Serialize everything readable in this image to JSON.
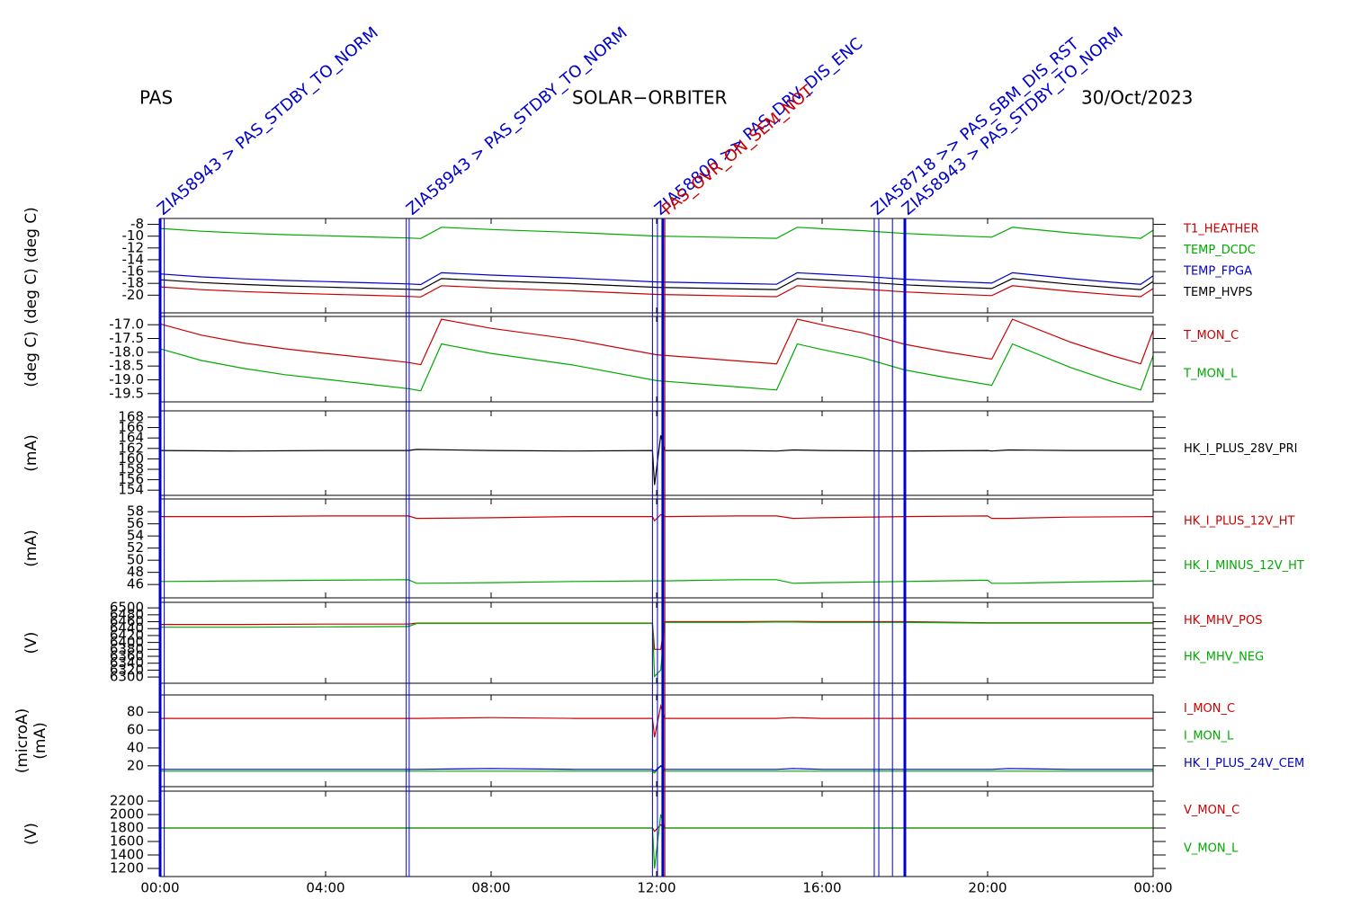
{
  "header": {
    "left": "PAS",
    "center": "SOLAR−ORBITER",
    "right": "30/Oct/2023"
  },
  "x_axis": {
    "xlim": [
      0,
      24
    ],
    "xticks": [
      {
        "value": 0,
        "label": "00:00"
      },
      {
        "value": 4,
        "label": "04:00"
      },
      {
        "value": 8,
        "label": "08:00"
      },
      {
        "value": 12,
        "label": "12:00"
      },
      {
        "value": 16,
        "label": "16:00"
      },
      {
        "value": 20,
        "label": "20:00"
      },
      {
        "value": 24,
        "label": "00:00"
      }
    ]
  },
  "events": [
    {
      "x": 0,
      "bold": true,
      "color": "#0000cc",
      "label": "ZIA58943 > PAS_STDBY_TO_NORM"
    },
    {
      "x": 0.1,
      "bold": false,
      "color": "#0000cc"
    },
    {
      "x": 5.95,
      "bold": false,
      "color": "#0000cc"
    },
    {
      "x": 6.02,
      "bold": false,
      "color": "#0000cc",
      "label": "ZIA58943 > PAS_STDBY_TO_NORM"
    },
    {
      "x": 11.9,
      "bold": false,
      "color": "#0000cc"
    },
    {
      "x": 12.02,
      "bold": false,
      "color": "#0000cc",
      "label": "ZIA58800 >> PAS_DRV_DIS_ENC"
    },
    {
      "x": 12.15,
      "bold": true,
      "color": "#0000cc"
    },
    {
      "x": 12.2,
      "bold": false,
      "color": "#cc0000",
      "label": "PAS_OVR_ON_SEM_NOT"
    },
    {
      "x": 17.26,
      "bold": false,
      "color": "#0000cc",
      "label": "ZIA58718 >> PAS_SBM_DIS_RST"
    },
    {
      "x": 17.37,
      "bold": false,
      "color": "#0000cc"
    },
    {
      "x": 17.7,
      "bold": false,
      "color": "#0000cc"
    },
    {
      "x": 18.0,
      "bold": true,
      "color": "#0000cc",
      "label": "ZIA58943 > PAS_STDBY_TO_NORM"
    }
  ],
  "chart_data": [
    {
      "type": "line",
      "ylabel": "(deg C)  (deg C)",
      "ylim": [
        -23,
        -7
      ],
      "yticks": [
        -8,
        -10,
        -12,
        -14,
        -16,
        -18,
        -20
      ],
      "x": [
        0,
        1,
        2,
        3,
        4,
        5,
        6,
        6.3,
        6.8,
        8,
        10,
        12,
        14,
        14.9,
        15.4,
        16,
        17,
        18,
        19,
        20.1,
        20.6,
        22,
        23,
        23.7,
        24
      ],
      "series": [
        {
          "name": "T1_HEATHER",
          "color": "#cc0000",
          "values": [
            -18.59,
            -19.07,
            -19.39,
            -19.64,
            -19.83,
            -20.02,
            -20.21,
            -20.3,
            -18.4,
            -18.78,
            -19.26,
            -19.88,
            -20.15,
            -20.26,
            -18.4,
            -18.63,
            -18.97,
            -19.45,
            -19.77,
            -20.07,
            -18.4,
            -19.35,
            -19.92,
            -20.26,
            -18.88
          ]
        },
        {
          "name": "TEMP_DCDC",
          "color": "#00aa00",
          "values": [
            -8.69,
            -9.17,
            -9.49,
            -9.74,
            -9.93,
            -10.12,
            -10.31,
            -10.4,
            -8.5,
            -8.88,
            -9.36,
            -9.98,
            -10.25,
            -10.36,
            -8.5,
            -8.73,
            -9.07,
            -9.55,
            -9.87,
            -10.17,
            -8.5,
            -9.45,
            -10.02,
            -10.36,
            -8.98
          ]
        },
        {
          "name": "TEMP_FPGA",
          "color": "#0000cc",
          "values": [
            -16.4,
            -16.9,
            -17.24,
            -17.5,
            -17.7,
            -17.9,
            -18.1,
            -18.2,
            -16.2,
            -16.6,
            -17.1,
            -17.76,
            -18.04,
            -18.16,
            -16.2,
            -16.44,
            -16.8,
            -17.3,
            -17.64,
            -17.96,
            -16.2,
            -17.2,
            -17.8,
            -18.16,
            -16.7
          ]
        },
        {
          "name": "TEMP_HVPS",
          "color": "#000000",
          "values": [
            -17.39,
            -17.87,
            -18.19,
            -18.44,
            -18.63,
            -18.82,
            -19.01,
            -19.1,
            -17.2,
            -17.58,
            -18.06,
            -18.68,
            -18.95,
            -19.06,
            -17.2,
            -17.43,
            -17.77,
            -18.25,
            -18.57,
            -18.87,
            -17.2,
            -18.15,
            -18.72,
            -19.06,
            -17.68
          ]
        }
      ]
    },
    {
      "type": "line",
      "ylabel": "(deg C)",
      "ylim": [
        -19.8,
        -16.7
      ],
      "yticks": [
        {
          "value": -17,
          "label": "-17.0"
        },
        -17.5,
        {
          "value": -18,
          "label": "-18.0"
        },
        -18.5,
        {
          "value": -19,
          "label": "-19.0"
        },
        -19.5
      ],
      "x": [
        0,
        1,
        2,
        3,
        4,
        5,
        6,
        6.3,
        6.8,
        8,
        10,
        12,
        14,
        14.9,
        15.4,
        16,
        17,
        18,
        19,
        20.1,
        20.6,
        22,
        23,
        23.7,
        24
      ],
      "series": [
        {
          "name": "T_MON_C",
          "color": "#cc0000",
          "values": [
            -16.97,
            -17.38,
            -17.66,
            -17.87,
            -18.04,
            -18.2,
            -18.37,
            -18.45,
            -16.8,
            -17.13,
            -17.54,
            -18.09,
            -18.32,
            -18.42,
            -16.8,
            -17.0,
            -17.3,
            -17.71,
            -17.99,
            -18.25,
            -16.8,
            -17.63,
            -18.12,
            -18.42,
            -17.21
          ]
        },
        {
          "name": "T_MON_L",
          "color": "#00aa00",
          "values": [
            -17.87,
            -18.3,
            -18.58,
            -18.81,
            -18.98,
            -19.15,
            -19.32,
            -19.4,
            -17.7,
            -18.04,
            -18.47,
            -19.03,
            -19.26,
            -19.37,
            -17.7,
            -17.9,
            -18.21,
            -18.64,
            -18.92,
            -19.2,
            -17.7,
            -18.55,
            -19.06,
            -19.37,
            -18.13
          ]
        }
      ]
    },
    {
      "type": "line",
      "ylabel": "(mA)",
      "ylim": [
        153,
        169.2
      ],
      "yticks": [
        168,
        166,
        164,
        162,
        160,
        158,
        156,
        154
      ],
      "x": [
        0,
        2,
        4,
        6,
        6.2,
        8,
        10,
        11.9,
        11.95,
        12.1,
        12.2,
        14,
        14.9,
        15.3,
        16,
        18,
        20,
        20.1,
        20.5,
        22,
        24
      ],
      "series": [
        {
          "name": "HK_I_PLUS_28V_PRI",
          "color": "#000000",
          "values": [
            161.6,
            161.5,
            161.6,
            161.6,
            161.8,
            161.6,
            161.5,
            161.6,
            155,
            164.5,
            161.6,
            161.6,
            161.5,
            161.7,
            161.6,
            161.5,
            161.6,
            161.5,
            161.7,
            161.6,
            161.6
          ]
        }
      ]
    },
    {
      "type": "line",
      "ylabel": "(mA)",
      "ylim": [
        43.8,
        60.1
      ],
      "yticks": [
        58,
        56,
        54,
        52,
        50,
        48,
        46
      ],
      "x": [
        0,
        2,
        4,
        6,
        6.2,
        8,
        10,
        11.9,
        11.95,
        12.1,
        12.2,
        14,
        14.9,
        15.3,
        16,
        18,
        20,
        20.1,
        20.5,
        22,
        24
      ],
      "series": [
        {
          "name": "HK_I_PLUS_12V_HT",
          "color": "#cc0000",
          "values": [
            57.2,
            57.2,
            57.3,
            57.3,
            56.9,
            57.0,
            57.2,
            57.2,
            56.5,
            57.5,
            57.2,
            57.3,
            57.3,
            56.9,
            57.0,
            57.2,
            57.3,
            56.9,
            56.9,
            57.1,
            57.2
          ]
        },
        {
          "name": "HK_I_MINUS_12V_HT",
          "color": "#00aa00",
          "values": [
            46.5,
            46.6,
            46.7,
            46.8,
            46.2,
            46.3,
            46.5,
            46.6,
            46.6,
            46.6,
            46.6,
            46.8,
            46.8,
            46.2,
            46.3,
            46.5,
            46.7,
            46.2,
            46.2,
            46.4,
            46.6
          ]
        }
      ]
    },
    {
      "type": "line",
      "ylabel": "(V)",
      "ylim": [
        6282,
        6516
      ],
      "yticks": [
        6500,
        6480,
        6460,
        6440,
        6420,
        6400,
        6380,
        6360,
        6340,
        6320,
        6300
      ],
      "x": [
        0,
        2,
        4,
        6,
        6.2,
        8,
        10,
        11.9,
        11.95,
        12.1,
        12.2,
        14,
        14.9,
        15.3,
        16,
        18,
        20,
        20.1,
        20.5,
        22,
        24
      ],
      "series": [
        {
          "name": "HK_MHV_POS",
          "color": "#cc0000",
          "values": [
            6452,
            6452,
            6453,
            6453,
            6456,
            6456,
            6456,
            6456,
            6380,
            6380,
            6460,
            6460,
            6461,
            6461,
            6460,
            6460,
            6457,
            6457,
            6457,
            6457,
            6457
          ]
        },
        {
          "name": "HK_MHV_NEG",
          "color": "#00aa00",
          "values": [
            6444,
            6444,
            6445,
            6446,
            6455,
            6455,
            6455,
            6455,
            6302,
            6320,
            6458,
            6458,
            6459,
            6459,
            6458,
            6458,
            6456,
            6456,
            6456,
            6456,
            6456
          ]
        }
      ]
    },
    {
      "type": "line",
      "ylabel": [
        "(microA)",
        "(mA)"
      ],
      "ylim": [
        -3.3,
        99.3
      ],
      "yticks": [
        80,
        60,
        40,
        20
      ],
      "x": [
        0,
        2,
        4,
        6,
        6.2,
        8,
        10,
        11.9,
        11.95,
        12.1,
        12.2,
        14,
        14.9,
        15.3,
        16,
        18,
        20,
        20.1,
        20.5,
        22,
        24
      ],
      "series": [
        {
          "name": "I_MON_C",
          "color": "#cc0000",
          "values": [
            73,
            73,
            73,
            73,
            73,
            74,
            73,
            73,
            52,
            87,
            73,
            73,
            73,
            74,
            73,
            73,
            73,
            73,
            73,
            73,
            73
          ]
        },
        {
          "name": "I_MON_L",
          "color": "#00aa00",
          "values": [
            14,
            14,
            14,
            14,
            14,
            14,
            14,
            14,
            12,
            20,
            14,
            14,
            14,
            14,
            14,
            14,
            14,
            14,
            14,
            14,
            14
          ]
        },
        {
          "name": "HK_I_PLUS_24V_CEM",
          "color": "#0000cc",
          "values": [
            16,
            16,
            16,
            16,
            16,
            17,
            16,
            16,
            14,
            20,
            16,
            16,
            16,
            17,
            16,
            16,
            16,
            16,
            17,
            16,
            16
          ]
        }
      ]
    },
    {
      "type": "line",
      "ylabel": "(V)",
      "ylim": [
        1080,
        2347
      ],
      "yticks": [
        2200,
        2000,
        1800,
        1600,
        1400,
        1200
      ],
      "x": [
        0,
        2,
        4,
        6,
        6.2,
        8,
        10,
        11.9,
        11.95,
        12.1,
        12.2,
        14,
        14.9,
        15.3,
        16,
        18,
        20,
        20.1,
        20.5,
        22,
        24
      ],
      "series": [
        {
          "name": "V_MON_C",
          "color": "#cc0000",
          "values": [
            1800,
            1800,
            1800,
            1800,
            1800,
            1800,
            1800,
            1800,
            1750,
            1850,
            1800,
            1800,
            1800,
            1800,
            1800,
            1800,
            1800,
            1800,
            1800,
            1800,
            1800
          ]
        },
        {
          "name": "V_MON_L",
          "color": "#00aa00",
          "values": [
            1800,
            1800,
            1800,
            1800,
            1800,
            1800,
            1800,
            1800,
            1200,
            2000,
            1800,
            1800,
            1800,
            1800,
            1800,
            1800,
            1800,
            1800,
            1800,
            1800,
            1800
          ]
        }
      ]
    }
  ]
}
